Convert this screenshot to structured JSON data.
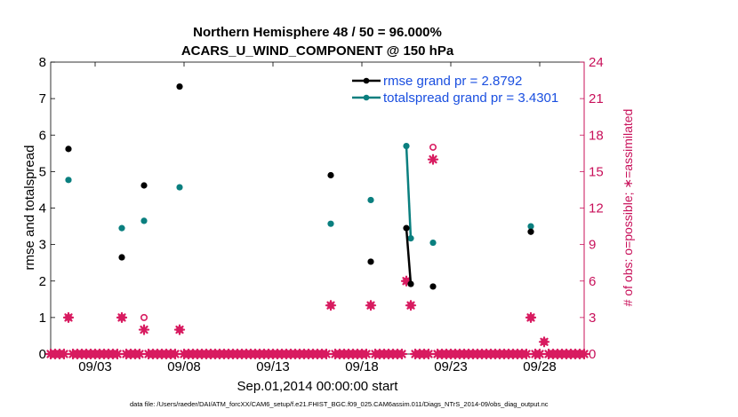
{
  "chart_data": {
    "type": "scatter",
    "title_line1": "Northern Hemisphere 48 / 50 = 96.000%",
    "title_line2": "ACARS_U_WIND_COMPONENT @ 150 hPa",
    "xlabel": "Sep.01,2014 00:00:00 start",
    "ylabel_left": "rmse and totalspread",
    "ylabel_right": "# of obs: o=possible; ∗=assimilated",
    "xlim": [
      0.5,
      30.5
    ],
    "ylim_left": [
      0,
      8
    ],
    "ylim_right": [
      0,
      24
    ],
    "x_ticks": [
      {
        "x": 3,
        "label": "09/03"
      },
      {
        "x": 8,
        "label": "09/08"
      },
      {
        "x": 13,
        "label": "09/13"
      },
      {
        "x": 18,
        "label": "09/18"
      },
      {
        "x": 23,
        "label": "09/23"
      },
      {
        "x": 28,
        "label": "09/28"
      }
    ],
    "y_ticks_left": [
      "0",
      "1",
      "2",
      "3",
      "4",
      "5",
      "6",
      "7",
      "8"
    ],
    "y_ticks_right": [
      "0",
      "3",
      "6",
      "9",
      "12",
      "15",
      "18",
      "21",
      "24"
    ],
    "rmse": {
      "legend": "rmse grand pr = 2.8792",
      "color": "#000000",
      "points": [
        [
          1.5,
          5.62
        ],
        [
          4.5,
          2.65
        ],
        [
          5.75,
          4.62
        ],
        [
          7.75,
          7.33
        ],
        [
          16.25,
          4.9
        ],
        [
          18.5,
          2.53
        ],
        [
          20.5,
          3.45
        ],
        [
          20.75,
          1.92
        ],
        [
          22.0,
          1.85
        ],
        [
          27.5,
          3.35
        ]
      ],
      "line_segments": [
        [
          [
            20.5,
            3.45
          ],
          [
            20.75,
            1.92
          ]
        ]
      ]
    },
    "totalspread": {
      "legend": "totalspread grand pr = 3.4301",
      "color": "#0a7f7f",
      "points": [
        [
          1.5,
          4.77
        ],
        [
          4.5,
          3.45
        ],
        [
          5.75,
          3.65
        ],
        [
          7.75,
          4.57
        ],
        [
          16.25,
          3.57
        ],
        [
          18.5,
          4.22
        ],
        [
          20.5,
          5.7
        ],
        [
          20.75,
          3.17
        ],
        [
          22.0,
          3.05
        ],
        [
          27.5,
          3.5
        ]
      ],
      "line_segments": [
        [
          [
            20.5,
            5.7
          ],
          [
            20.75,
            3.17
          ]
        ]
      ]
    },
    "obs_color": "#d81b60",
    "obs_possible": [
      [
        1.5,
        3
      ],
      [
        4.5,
        3
      ],
      [
        5.75,
        3
      ],
      [
        7.75,
        2
      ],
      [
        16.25,
        4
      ],
      [
        18.5,
        4
      ],
      [
        20.5,
        6
      ],
      [
        20.75,
        4
      ],
      [
        22.0,
        17
      ],
      [
        27.5,
        3
      ],
      [
        28.25,
        1
      ]
    ],
    "obs_assimilated": [
      [
        1.5,
        3
      ],
      [
        4.5,
        3
      ],
      [
        5.75,
        2
      ],
      [
        7.75,
        2
      ],
      [
        16.25,
        4
      ],
      [
        18.5,
        4
      ],
      [
        20.5,
        6
      ],
      [
        20.75,
        4
      ],
      [
        22.0,
        16
      ],
      [
        27.5,
        3
      ],
      [
        28.25,
        1
      ]
    ],
    "zero_obs_x_start": 0.5,
    "zero_obs_x_end": 30.5,
    "zero_obs_step": 0.25
  },
  "footer": "data file: /Users/raeder/DAI/ATM_forcXX/CAM6_setup/f.e21.FHIST_BGC.f09_025.CAM6assim.011/Diags_NTrS_2014-09/obs_diag_output.nc"
}
